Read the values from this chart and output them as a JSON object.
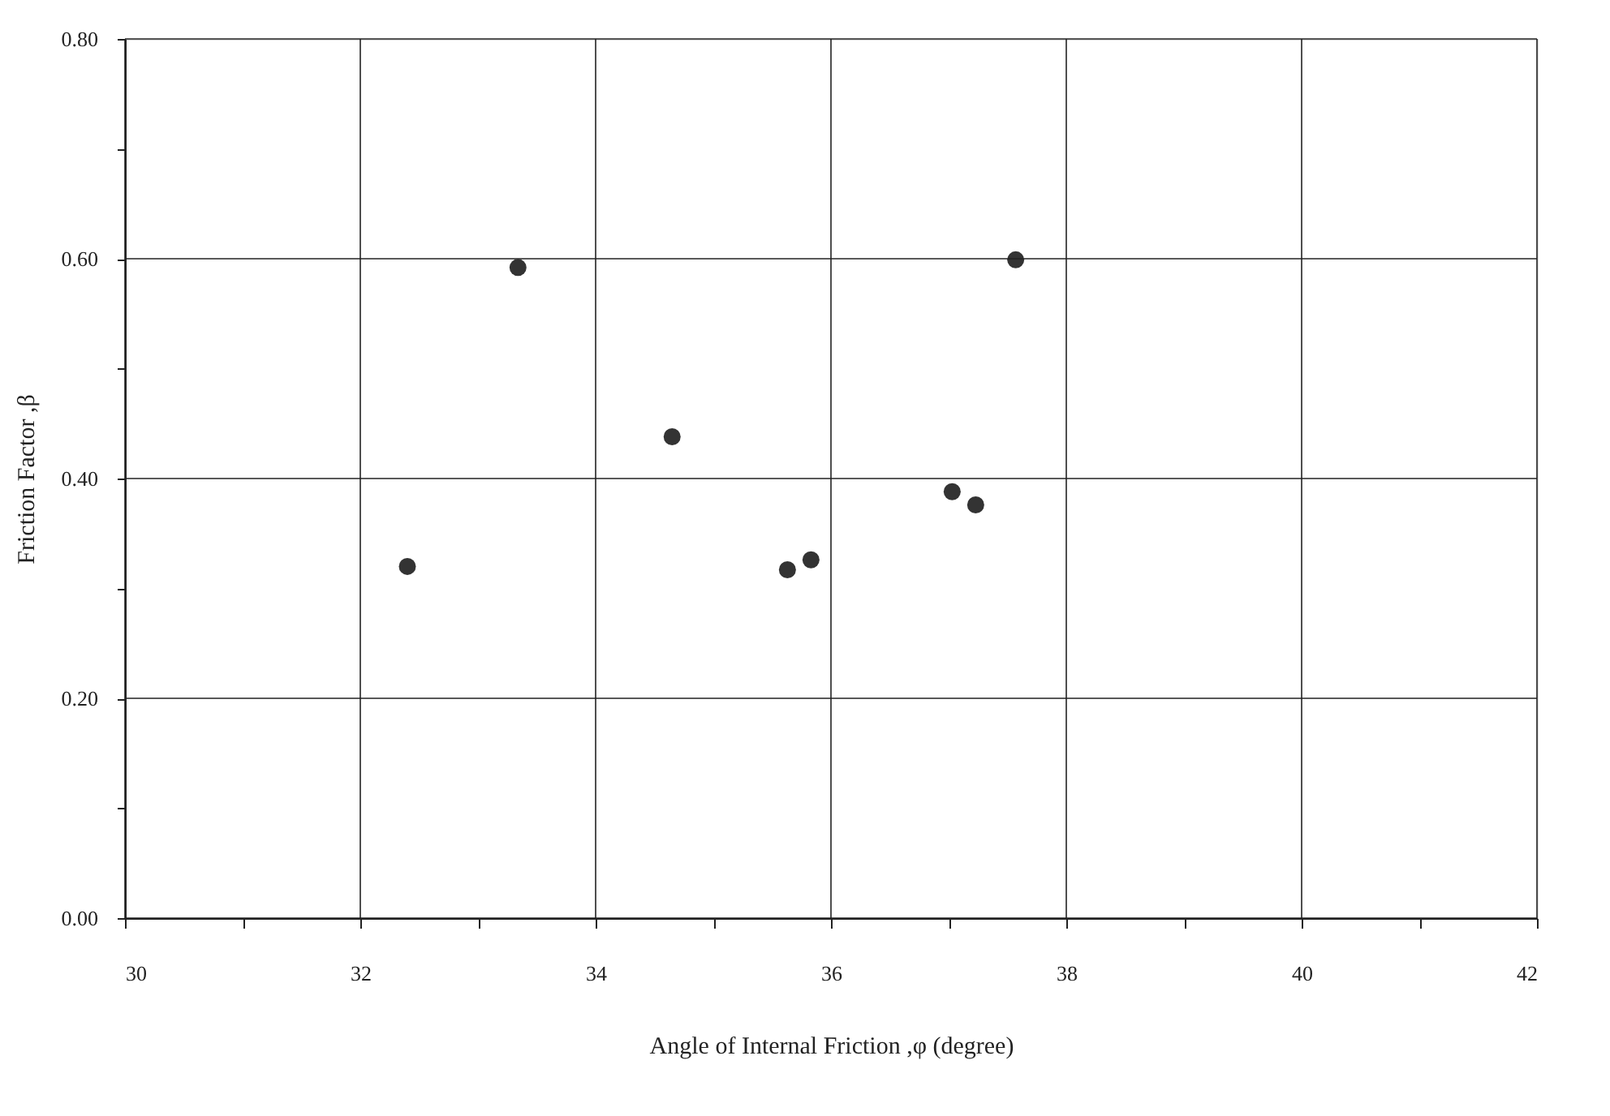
{
  "chart_data": {
    "type": "scatter",
    "xlabel": "Angle of Internal Friction ,φ (degree)",
    "ylabel": "Friction Factor ,β",
    "x": [
      32.4,
      33.34,
      34.65,
      35.63,
      35.83,
      37.03,
      37.23,
      37.57
    ],
    "series": [
      {
        "color": "#333333",
        "values": [
          0.32,
          0.592,
          0.438,
          0.317,
          0.326,
          0.388,
          0.376,
          0.599
        ]
      }
    ],
    "xlim": [
      30,
      42
    ],
    "xticks": [
      30,
      {
        "value": 31,
        "label": null
      },
      32,
      {
        "value": 33,
        "label": null
      },
      34,
      {
        "value": 35,
        "label": null
      },
      36,
      {
        "value": 37,
        "label": null
      },
      38,
      {
        "value": 39,
        "label": null
      },
      40,
      {
        "value": 41,
        "label": null
      },
      42
    ],
    "ylim": [
      0,
      0.8
    ],
    "yticks": [
      {
        "value": 0,
        "label": "0.00"
      },
      {
        "value": 0.1,
        "label": null
      },
      {
        "value": 0.2,
        "label": "0.20"
      },
      {
        "value": 0.3,
        "label": null
      },
      {
        "value": 0.4,
        "label": "0.40"
      },
      {
        "value": 0.5,
        "label": null
      },
      {
        "value": 0.6,
        "label": "0.60"
      },
      {
        "value": 0.7,
        "label": null
      },
      {
        "value": 0.8,
        "label": "0.80"
      }
    ],
    "grid": true,
    "marker": "circle"
  }
}
